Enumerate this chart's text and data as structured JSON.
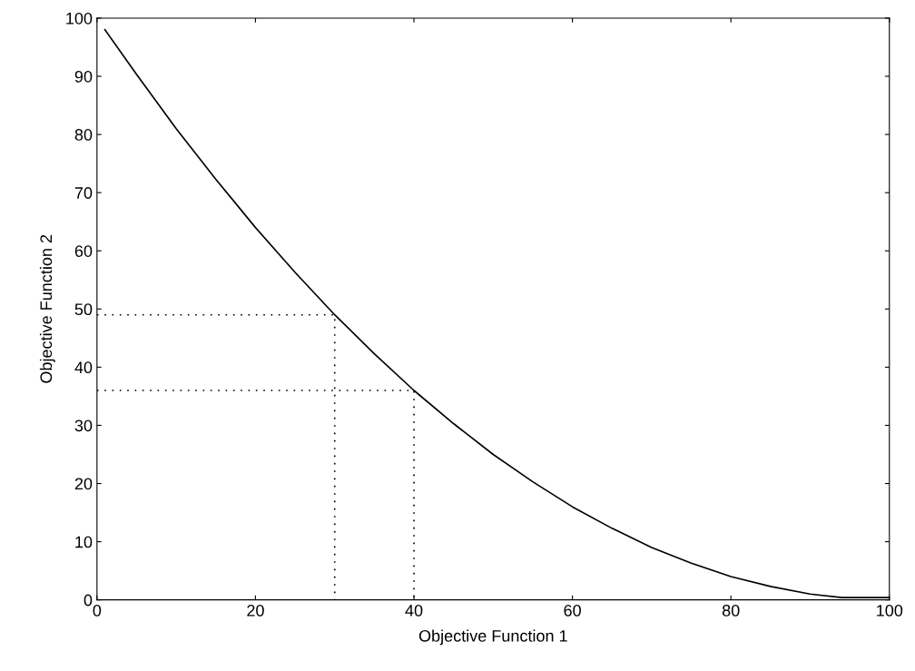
{
  "chart_data": {
    "type": "line",
    "xlabel": "Objective Function 1",
    "ylabel": "Objective Function 2",
    "xlim": [
      0,
      100
    ],
    "ylim": [
      0,
      100
    ],
    "xticks": [
      0,
      20,
      40,
      60,
      80,
      100
    ],
    "yticks": [
      0,
      10,
      20,
      30,
      40,
      50,
      60,
      70,
      80,
      90,
      100
    ],
    "grid": false,
    "legend": false,
    "marker": "none",
    "series": [
      {
        "color": "#000000",
        "line_style": "solid",
        "x": [
          1,
          5,
          10,
          15,
          20,
          25,
          30,
          35,
          40,
          45,
          50,
          55,
          60,
          65,
          70,
          75,
          80,
          85,
          90,
          94,
          100
        ],
        "values": [
          98,
          90.3,
          81,
          72.3,
          64,
          56.3,
          49,
          42.3,
          36,
          30.3,
          25,
          20.3,
          16,
          12.3,
          9,
          6.3,
          4,
          2.3,
          1,
          0.4,
          0.4
        ]
      },
      {
        "color": "#000000",
        "line_style": "dotted",
        "x": [
          0,
          30,
          30
        ],
        "values": [
          49,
          49,
          0
        ]
      },
      {
        "color": "#000000",
        "line_style": "dotted",
        "x": [
          0,
          40,
          40
        ],
        "values": [
          36,
          36,
          0
        ]
      }
    ]
  }
}
